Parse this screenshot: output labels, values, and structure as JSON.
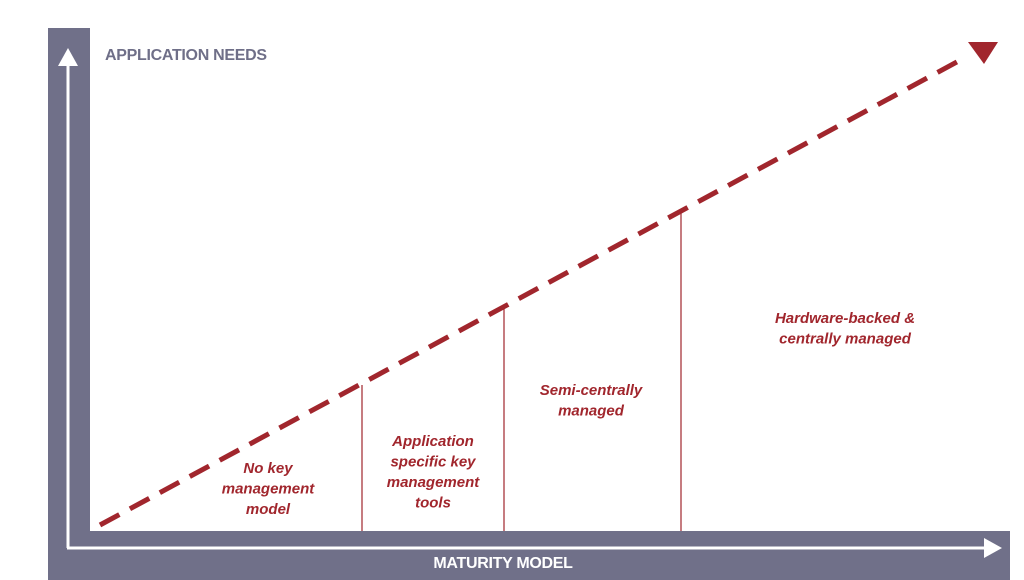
{
  "y_axis_label": "APPLICATION NEEDS",
  "x_axis_label": "MATURITY MODEL",
  "stages": [
    {
      "lines": [
        "No key",
        "management",
        "model"
      ]
    },
    {
      "lines": [
        "Application",
        "specific key",
        "management",
        "tools"
      ]
    },
    {
      "lines": [
        "Semi-centrally",
        "managed"
      ]
    },
    {
      "lines": [
        "Hardware-backed &",
        "centrally managed"
      ]
    }
  ]
}
